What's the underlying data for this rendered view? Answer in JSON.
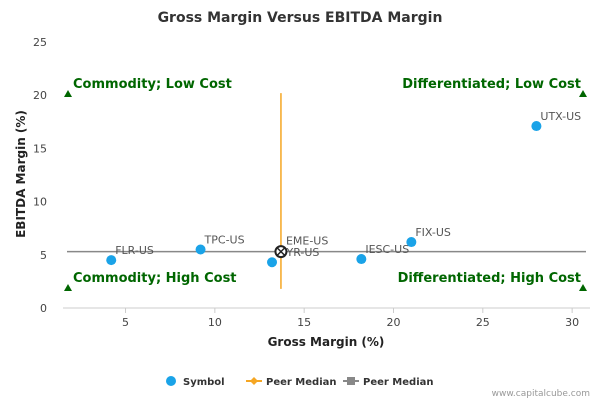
{
  "chart_data": {
    "type": "scatter",
    "title": "Gross Margin Versus EBITDA Margin",
    "xlabel": "Gross Margin (%)",
    "ylabel": "EBITDA Margin (%)",
    "xlim": [
      1.5,
      31
    ],
    "ylim": [
      0,
      25
    ],
    "xticks": [
      5,
      10,
      15,
      20,
      25,
      30
    ],
    "yticks": [
      0,
      5,
      10,
      15,
      20,
      25
    ],
    "points": [
      {
        "label": "UTX-US",
        "x": 28.0,
        "y": 17.1
      },
      {
        "label": "FIX-US",
        "x": 21.0,
        "y": 6.2
      },
      {
        "label": "IESC-US",
        "x": 18.2,
        "y": 4.6
      },
      {
        "label": "EME-US",
        "x": 13.7,
        "y": 5.3
      },
      {
        "label": "MYR-US",
        "x": 13.2,
        "y": 4.3
      },
      {
        "label": "TPC-US",
        "x": 9.2,
        "y": 5.5
      },
      {
        "label": "FLR-US",
        "x": 4.2,
        "y": 4.5
      }
    ],
    "peer_median": {
      "x": 13.7,
      "y": 5.3
    },
    "peer_median_vline": {
      "x": 13.7,
      "y_from": 1.8,
      "y_to": 20.2
    },
    "peer_median_hline": {
      "y": 5.3,
      "x_from": 1.5,
      "x_to": 31
    },
    "quadrants": [
      {
        "label": "Commodity; Low Cost",
        "corner": "top-left"
      },
      {
        "label": "Differentiated; Low Cost",
        "corner": "top-right"
      },
      {
        "label": "Commodity; High Cost",
        "corner": "bottom-left"
      },
      {
        "label": "Differentiated; High Cost",
        "corner": "bottom-right"
      }
    ],
    "legend": [
      {
        "label": "Symbol",
        "marker": "circle",
        "color": "#1aa3e8"
      },
      {
        "label": "Peer Median",
        "marker": "diamond-line",
        "color": "#f5a623"
      },
      {
        "label": "Peer Median",
        "marker": "square-line",
        "color": "#888888"
      }
    ]
  },
  "colors": {
    "point": "#1aa3e8",
    "vline": "#f5a623",
    "hline": "#888888",
    "quadrant": "#006600",
    "axis": "#cccccc"
  },
  "credit": "www.capitalcube.com"
}
